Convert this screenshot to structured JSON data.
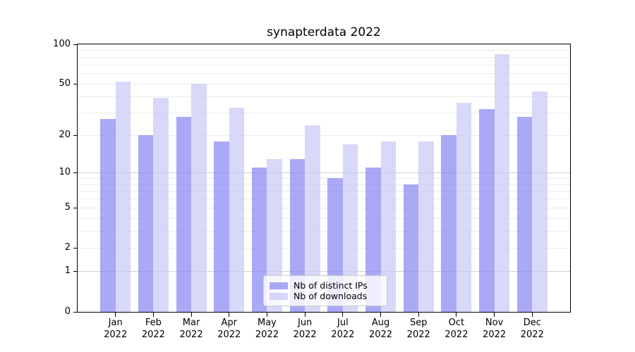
{
  "chart_data": {
    "type": "bar",
    "title": "synapterdata 2022",
    "categories": [
      "Jan",
      "Feb",
      "Mar",
      "Apr",
      "May",
      "Jun",
      "Jul",
      "Aug",
      "Sep",
      "Oct",
      "Nov",
      "Dec"
    ],
    "year_label": "2022",
    "series": [
      {
        "name": "Nb of distinct IPs",
        "color": "rgba(132,132,241,0.7)",
        "values": [
          27,
          20,
          28,
          18,
          11,
          13,
          9,
          11,
          8,
          20,
          32,
          28
        ]
      },
      {
        "name": "Nb of downloads",
        "color": "rgba(199,199,246,0.7)",
        "values": [
          52,
          39,
          50,
          33,
          13,
          24,
          17,
          18,
          18,
          36,
          84,
          44
        ]
      }
    ],
    "yscale": "log1p",
    "ylim": [
      0,
      100
    ],
    "yticks": [
      0,
      1,
      2,
      5,
      10,
      20,
      50,
      100
    ],
    "grid_minor_values": [
      2,
      3,
      4,
      5,
      6,
      7,
      8,
      9,
      20,
      30,
      40,
      50,
      60,
      70,
      80,
      90
    ],
    "grid_major_values": [
      1,
      10
    ],
    "grid_minor_color": "#ebebeb",
    "grid_major_color": "#d0d0d0",
    "axis_color": "#000000",
    "legend_position": "lower center",
    "grid": "on"
  }
}
